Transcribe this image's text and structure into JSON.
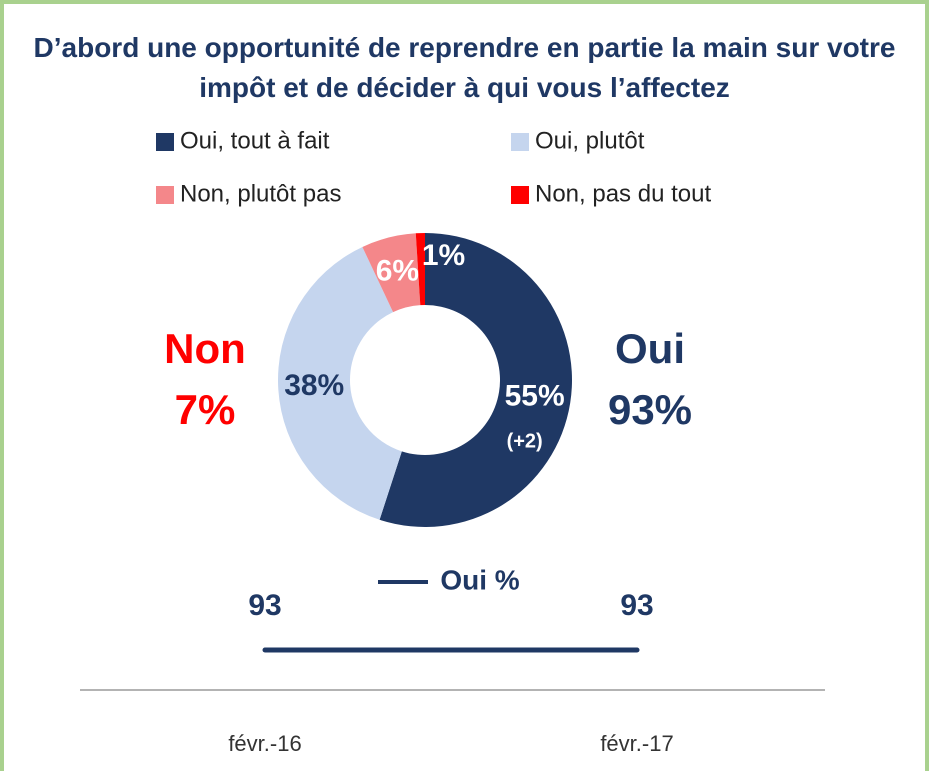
{
  "chart_data": [
    {
      "type": "donut",
      "title": "D’abord une opportunité de reprendre en partie la main sur votre impôt et de décider à qui vous l’affectez",
      "categories": [
        "Oui, tout à fait",
        "Oui, plutôt",
        "Non, plutôt pas",
        "Non, pas du tout"
      ],
      "values": [
        55,
        38,
        6,
        1
      ],
      "value_labels": [
        "55%",
        "38%",
        "6%",
        "1%"
      ],
      "colors": [
        "#1f3864",
        "#c5d5ee",
        "#f4878a",
        "#ff0000"
      ],
      "label_colors": [
        "#ffffff",
        "#1f3864",
        "#ffffff",
        "#ffffff"
      ],
      "annotation": "(+2)",
      "summary": [
        {
          "name": "Non",
          "value": 7,
          "value_label": "7%",
          "color": "#ff0000"
        },
        {
          "name": "Oui",
          "value": 93,
          "value_label": "93%",
          "color": "#1f3864"
        }
      ]
    },
    {
      "type": "line",
      "categories": [
        "févr.-16",
        "févr.-17"
      ],
      "series": [
        {
          "name": "Oui %",
          "color": "#1f3864",
          "values": [
            93,
            93
          ]
        }
      ]
    }
  ]
}
